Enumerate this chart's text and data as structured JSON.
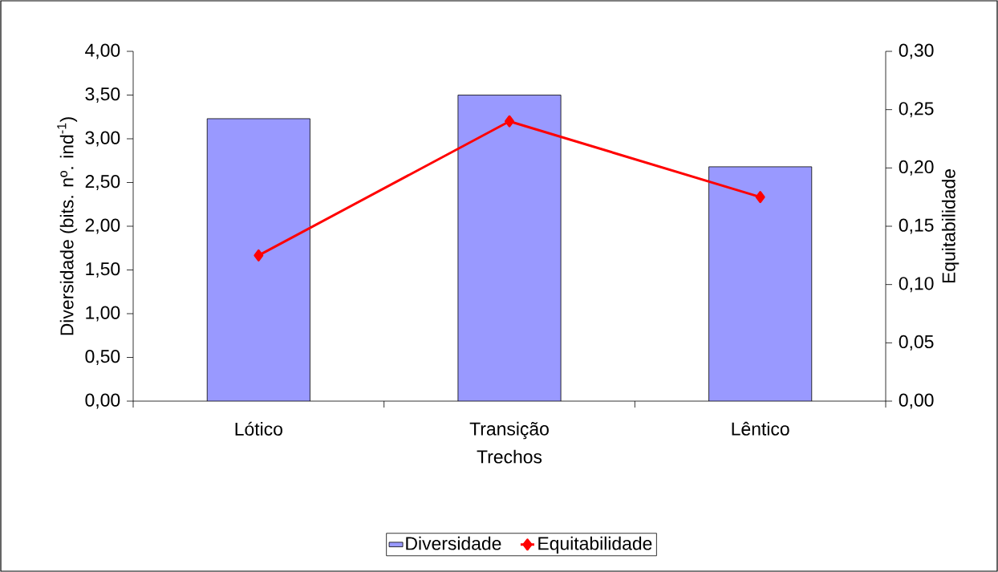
{
  "chart_data": {
    "type": "bar",
    "xlabel": "Trechos",
    "ylabel": "Diversidade (bits. nº. ind$^{-1}$)",
    "y2label": "Equitabilidade",
    "categories": [
      "Lótico",
      "Transição",
      "Lêntico"
    ],
    "series": [
      {
        "name": "Diversidade",
        "color": "#9999ff",
        "values": [
          3.23,
          3.5,
          2.68
        ]
      },
      {
        "name": "Equitabilidade",
        "type": "line",
        "axis": "y2",
        "color": "#ff0000",
        "marker": "diamond",
        "values": [
          0.125,
          0.24,
          0.175
        ]
      }
    ],
    "ylim": [
      0,
      4
    ],
    "yticks": [
      {
        "value": 0,
        "label": "0,00"
      },
      {
        "value": 0.5,
        "label": "0,50"
      },
      {
        "value": 1,
        "label": "1,00"
      },
      {
        "value": 1.5,
        "label": "1,50"
      },
      {
        "value": 2,
        "label": "2,00"
      },
      {
        "value": 2.5,
        "label": "2,50"
      },
      {
        "value": 3,
        "label": "3,00"
      },
      {
        "value": 3.5,
        "label": "3,50"
      },
      {
        "value": 4,
        "label": "4,00"
      }
    ],
    "y2lim": [
      0,
      0.3
    ],
    "y2ticks": [
      {
        "value": 0,
        "label": "0,00"
      },
      {
        "value": 0.05,
        "label": "0,05"
      },
      {
        "value": 0.1,
        "label": "0,10"
      },
      {
        "value": 0.15,
        "label": "0,15"
      },
      {
        "value": 0.2,
        "label": "0,20"
      },
      {
        "value": 0.25,
        "label": "0,25"
      },
      {
        "value": 0.3,
        "label": "0,30"
      }
    ],
    "legend": "bottom",
    "grid": false
  }
}
